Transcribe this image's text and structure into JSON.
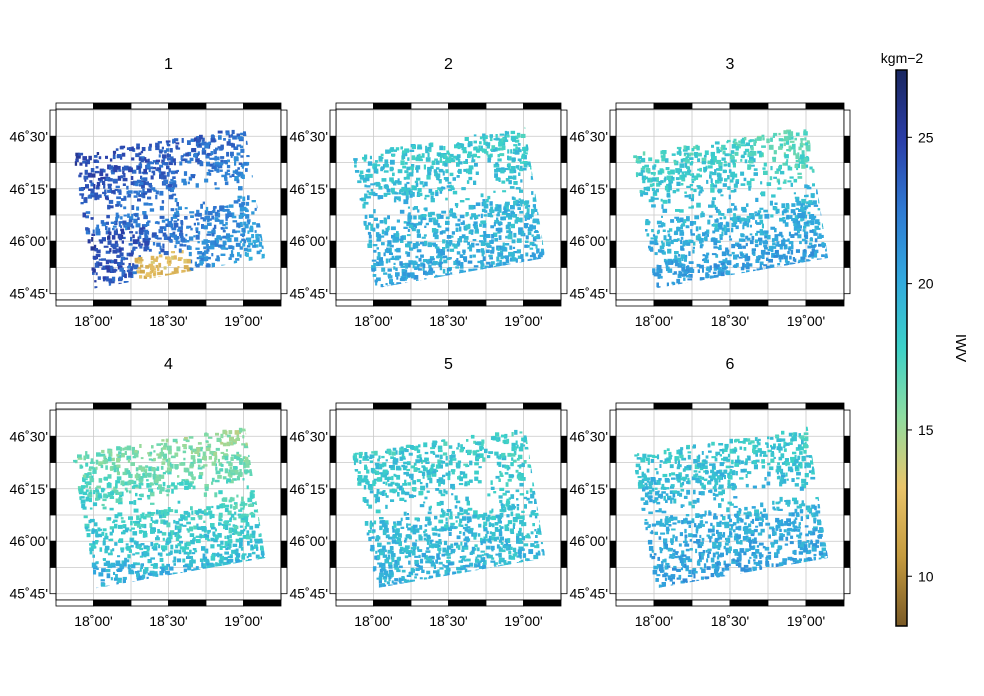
{
  "chart_data": {
    "type": "heatmap",
    "panels": [
      {
        "title": "1",
        "variant": 0
      },
      {
        "title": "2",
        "variant": 1
      },
      {
        "title": "3",
        "variant": 2
      },
      {
        "title": "4",
        "variant": 3
      },
      {
        "title": "5",
        "variant": 4
      },
      {
        "title": "6",
        "variant": 5
      }
    ],
    "x_ticks": [
      "18˚00'",
      "18˚30'",
      "19˚00'"
    ],
    "y_ticks": [
      "46˚30'",
      "46˚15'",
      "46˚00'",
      "45˚45'"
    ],
    "xlim_deg": [
      17.75,
      19.25
    ],
    "ylim_deg": [
      45.72,
      46.63
    ],
    "grid": true,
    "colorbar": {
      "label": "IWV",
      "unit": "kgm−2",
      "ticks": [
        "10",
        "15",
        "20",
        "25"
      ],
      "range": [
        8.3,
        27.3
      ],
      "colors": [
        "#7a5a26",
        "#c59b3f",
        "#e9c46a",
        "#8fdca0",
        "#3cd1c8",
        "#32a8de",
        "#2f79d2",
        "#2b3ea8",
        "#1a2760"
      ]
    }
  }
}
